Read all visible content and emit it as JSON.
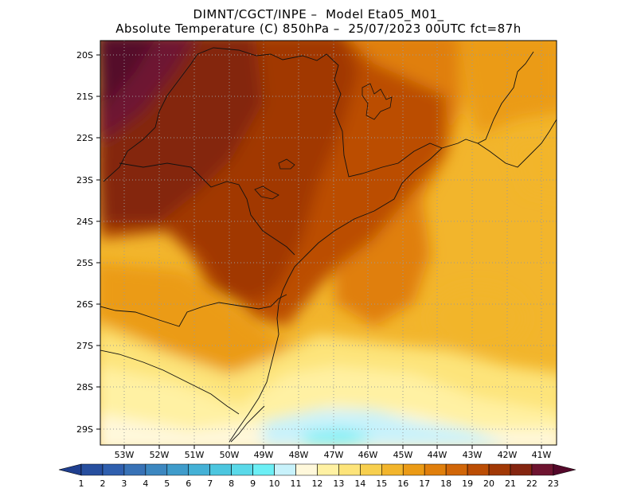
{
  "header": {
    "line1": "DIMNT/CGCT/INPE –  Model Eta05_M01_",
    "line2": "Absolute Temperature (C) 850hPa –  25/07/2023 00UTC fct=87h"
  },
  "axes": {
    "lat_labels": [
      "20S",
      "21S",
      "22S",
      "23S",
      "24S",
      "25S",
      "26S",
      "27S",
      "28S",
      "29S"
    ],
    "lon_labels": [
      "53W",
      "52W",
      "51W",
      "50W",
      "49W",
      "48W",
      "47W",
      "46W",
      "45W",
      "44W",
      "43W",
      "42W",
      "41W"
    ]
  },
  "colorbar": {
    "labels": [
      "1",
      "2",
      "3",
      "4",
      "5",
      "6",
      "7",
      "8",
      "9",
      "10",
      "11",
      "12",
      "13",
      "14",
      "15",
      "16",
      "17",
      "18",
      "19",
      "20",
      "21",
      "22",
      "23"
    ],
    "colors": [
      "#1f3f8f",
      "#274f9f",
      "#2f5fae",
      "#3872b6",
      "#3c87c0",
      "#3f9ccb",
      "#44b1d6",
      "#4cc6df",
      "#5ad9e9",
      "#6ceff5",
      "#c8f2fb",
      "#fff8db",
      "#fff1a3",
      "#fde47a",
      "#f7cf4e",
      "#f2b52c",
      "#eb9b16",
      "#e07f0c",
      "#d16608",
      "#bb4d04",
      "#a13805",
      "#842510",
      "#6e1430",
      "#54082a"
    ]
  },
  "grid": "dotted"
}
